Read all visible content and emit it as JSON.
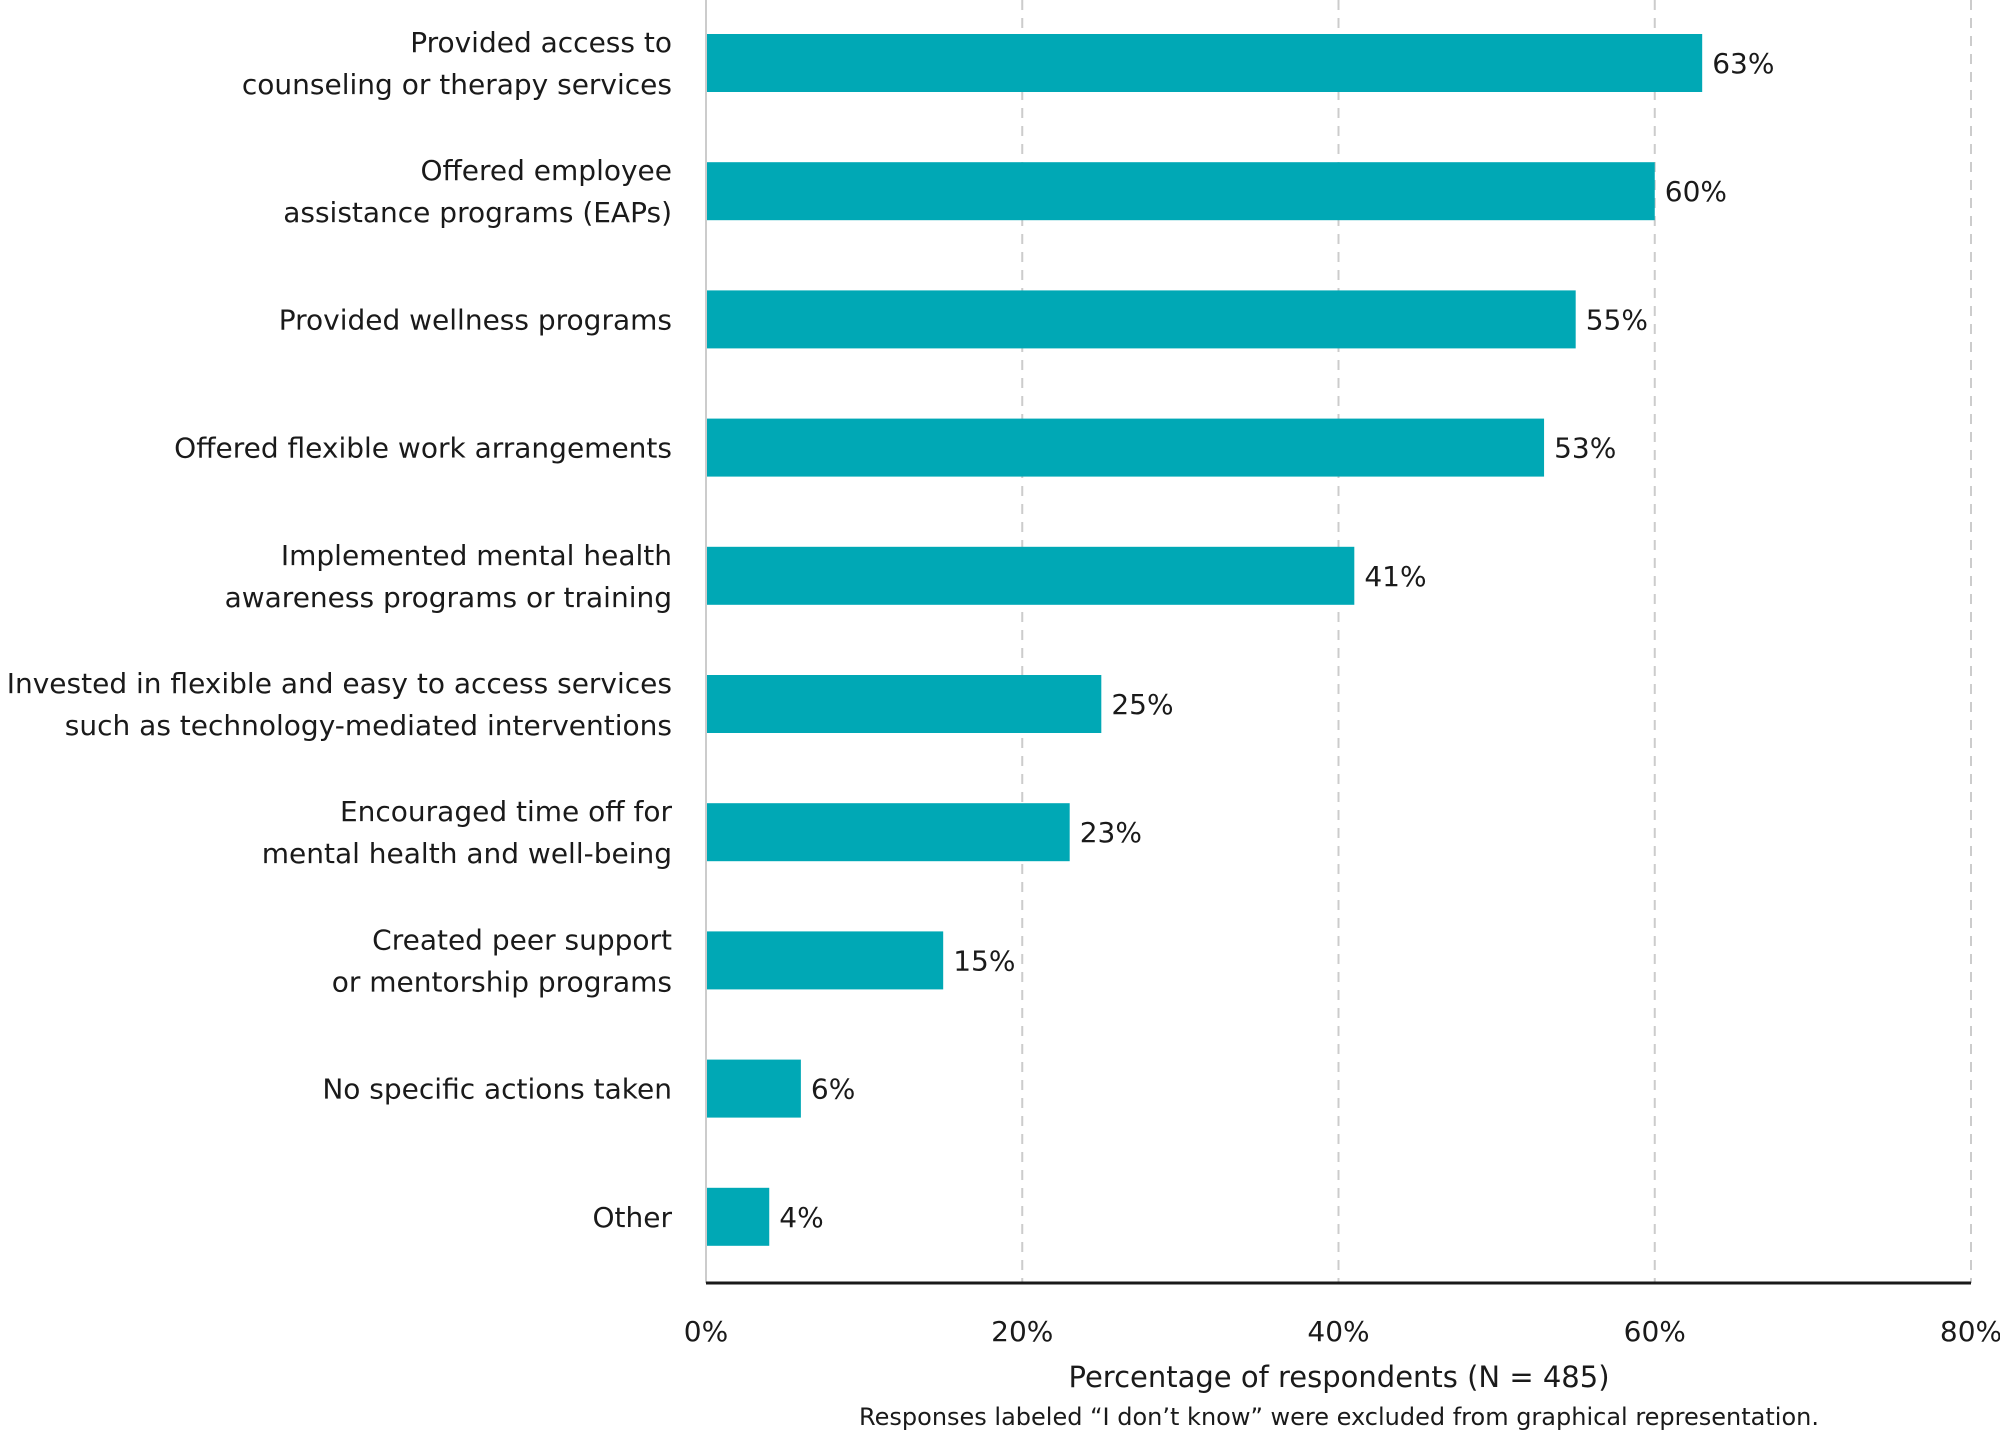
{
  "chart_data": {
    "type": "bar",
    "orientation": "horizontal",
    "categories": [
      [
        "Provided access to",
        "counseling or therapy services"
      ],
      [
        "Offered employee",
        "assistance programs (EAPs)"
      ],
      [
        "Provided wellness programs"
      ],
      [
        "Offered flexible work arrangements"
      ],
      [
        "Implemented mental health",
        "awareness programs or training"
      ],
      [
        "Invested in flexible and easy to access services",
        "such as technology-mediated interventions"
      ],
      [
        "Encouraged time off for",
        "mental health and well-being"
      ],
      [
        "Created peer support",
        "or mentorship programs"
      ],
      [
        "No specific actions taken"
      ],
      [
        "Other"
      ]
    ],
    "values": [
      63,
      60,
      55,
      53,
      41,
      25,
      23,
      15,
      6,
      4
    ],
    "value_labels": [
      "63%",
      "60%",
      "55%",
      "53%",
      "41%",
      "25%",
      "23%",
      "15%",
      "6%",
      "4%"
    ],
    "xlim": [
      0,
      80
    ],
    "xticks": [
      0,
      20,
      40,
      60,
      80
    ],
    "xtick_labels": [
      "0%",
      "20%",
      "40%",
      "60%",
      "80%"
    ],
    "xlabel": "Percentage of respondents (N = 485)",
    "note": "Responses labeled “I don’t know” were excluded from graphical representation.",
    "grid": "vertical dashed",
    "bar_color": "#00a8b5",
    "grid_color": "#cccccc",
    "axis_color": "#1a1a1a"
  }
}
